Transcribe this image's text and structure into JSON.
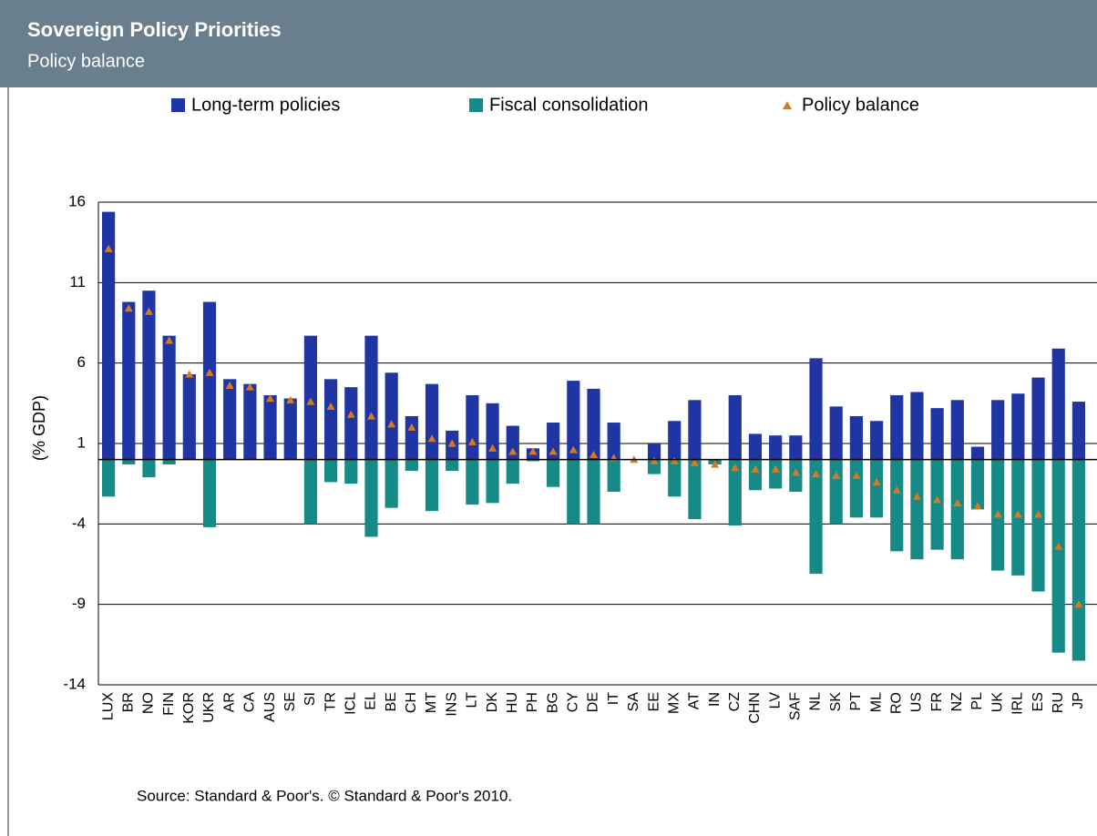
{
  "chart_data": {
    "type": "bar",
    "title": "Sovereign Policy Priorities",
    "subtitle": "Policy balance",
    "y_label": "(% GDP)",
    "source": "Source: Standard & Poor's. © Standard & Poor's 2010.",
    "categories": [
      "LUX",
      "BR",
      "NO",
      "FIN",
      "KOR",
      "UKR",
      "AR",
      "CA",
      "AUS",
      "SE",
      "SI",
      "TR",
      "ICL",
      "EL",
      "BE",
      "CH",
      "MT",
      "INS",
      "LT",
      "DK",
      "HU",
      "PH",
      "BG",
      "CY",
      "DE",
      "IT",
      "SA",
      "EE",
      "MX",
      "AT",
      "IN",
      "CZ",
      "CHN",
      "LV",
      "SAF",
      "NL",
      "SK",
      "PT",
      "ML",
      "RO",
      "US",
      "FR",
      "NZ",
      "PL",
      "UK",
      "IRL",
      "ES",
      "RU",
      "JP"
    ],
    "series": [
      {
        "name": "Long-term policies",
        "color": "#1f35a3",
        "marker": "bar",
        "values": [
          15.4,
          9.8,
          10.5,
          7.7,
          5.3,
          9.8,
          5.0,
          4.7,
          4.0,
          3.8,
          7.7,
          5.0,
          4.5,
          7.7,
          5.4,
          2.7,
          4.7,
          1.8,
          4.0,
          3.5,
          2.1,
          0.7,
          2.3,
          4.9,
          4.4,
          2.3,
          0,
          1.0,
          2.4,
          3.7,
          0,
          4.0,
          1.6,
          1.5,
          1.5,
          6.3,
          3.3,
          2.7,
          2.4,
          4.0,
          4.2,
          3.2,
          3.7,
          0.8,
          3.7,
          4.1,
          5.1,
          6.9,
          3.6
        ]
      },
      {
        "name": "Fiscal consolidation",
        "color": "#158a86",
        "marker": "bar",
        "values": [
          -2.3,
          -0.3,
          -1.1,
          -0.3,
          0,
          -4.2,
          0,
          0,
          0,
          0,
          -4.0,
          -1.4,
          -1.5,
          -4.8,
          -3.0,
          -0.7,
          -3.2,
          -0.7,
          -2.8,
          -2.7,
          -1.5,
          -0.1,
          -1.7,
          -4.0,
          -4.0,
          -2.0,
          0,
          -0.9,
          -2.3,
          -3.7,
          -0.3,
          -4.1,
          -1.9,
          -1.8,
          -2.0,
          -7.1,
          -4.0,
          -3.6,
          -3.6,
          -5.7,
          -6.2,
          -5.6,
          -6.2,
          -3.1,
          -6.9,
          -7.2,
          -8.2,
          -12.0,
          -12.5
        ]
      },
      {
        "name": "Policy balance",
        "color": "#d77a1f",
        "marker": "triangle",
        "values": [
          13.1,
          9.4,
          9.2,
          7.4,
          5.3,
          5.4,
          4.6,
          4.5,
          3.8,
          3.7,
          3.6,
          3.3,
          2.8,
          2.7,
          2.2,
          2.0,
          1.3,
          1.0,
          1.1,
          0.7,
          0.5,
          0.5,
          0.5,
          0.6,
          0.3,
          0.1,
          0.0,
          -0.1,
          -0.1,
          -0.2,
          -0.3,
          -0.5,
          -0.6,
          -0.6,
          -0.8,
          -0.9,
          -1.0,
          -1.0,
          -1.4,
          -1.9,
          -2.3,
          -2.5,
          -2.7,
          -2.9,
          -3.4,
          -3.4,
          -3.4,
          -5.4,
          -9.0
        ]
      }
    ],
    "ylim": [
      -14,
      16
    ],
    "yticks": [
      16,
      11,
      6,
      1,
      -4,
      -9,
      -14
    ],
    "grid": true
  }
}
